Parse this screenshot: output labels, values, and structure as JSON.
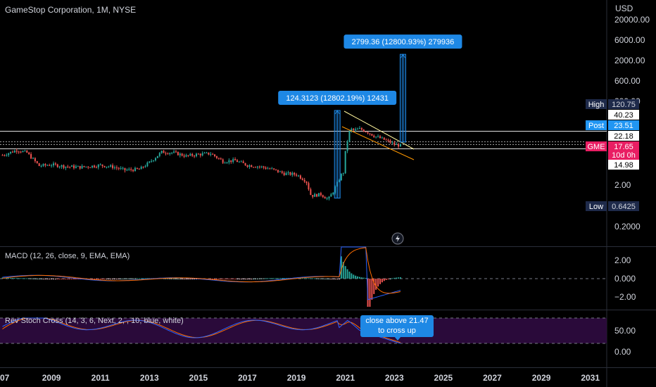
{
  "header": {
    "title": "GameStop Corporation, 1M, NYSE",
    "currency": "USD"
  },
  "colors": {
    "up": "#26a69a",
    "down": "#ef5350",
    "accent": "#2962ff",
    "measure": "#1e88e5",
    "gme_tag": "#e91e63",
    "macd": "#2962ff",
    "signal": "#ff6d00",
    "stoch_bg": "#2a0a3a"
  },
  "chart_data": [
    {
      "type": "candlestick",
      "title": "GameStop Corporation, 1M, NYSE",
      "y_scale": "log",
      "y_tick_labels": [
        "20000.00",
        "6000.00",
        "2000.00",
        "600.00",
        "200.00",
        "2.00",
        "0.2000"
      ],
      "x_tick_labels": [
        "07",
        "2009",
        "2011",
        "2013",
        "2015",
        "2017",
        "2019",
        "2021",
        "2023",
        "2025",
        "2027",
        "2029",
        "2031"
      ],
      "price_tags": [
        {
          "label": "High",
          "value": "120.75"
        },
        {
          "label": "",
          "value": "40.23"
        },
        {
          "label": "Post",
          "value": "23.51"
        },
        {
          "label": "",
          "value": "22.18"
        },
        {
          "label": "GME",
          "value": "17.65",
          "sub": "10d 0h"
        },
        {
          "label": "",
          "value": "14.98"
        },
        {
          "label": "Low",
          "value": "0.6425"
        }
      ],
      "horizontal_levels": [
        22.18,
        17.65,
        14.98
      ],
      "price_path": [
        {
          "x": 2007.0,
          "y": 10.5
        },
        {
          "x": 2007.6,
          "y": 14.0
        },
        {
          "x": 2008.0,
          "y": 12.0
        },
        {
          "x": 2008.5,
          "y": 5.8
        },
        {
          "x": 2009.0,
          "y": 6.2
        },
        {
          "x": 2009.6,
          "y": 5.6
        },
        {
          "x": 2010.2,
          "y": 5.4
        },
        {
          "x": 2011.0,
          "y": 6.0
        },
        {
          "x": 2011.5,
          "y": 5.5
        },
        {
          "x": 2012.0,
          "y": 4.6
        },
        {
          "x": 2012.6,
          "y": 4.8
        },
        {
          "x": 2013.0,
          "y": 7.0
        },
        {
          "x": 2013.5,
          "y": 12.5
        },
        {
          "x": 2014.0,
          "y": 12.0
        },
        {
          "x": 2014.5,
          "y": 10.0
        },
        {
          "x": 2015.0,
          "y": 11.0
        },
        {
          "x": 2015.5,
          "y": 11.5
        },
        {
          "x": 2016.0,
          "y": 7.5
        },
        {
          "x": 2016.5,
          "y": 7.8
        },
        {
          "x": 2017.0,
          "y": 6.0
        },
        {
          "x": 2017.5,
          "y": 5.6
        },
        {
          "x": 2018.0,
          "y": 4.8
        },
        {
          "x": 2018.5,
          "y": 3.8
        },
        {
          "x": 2019.0,
          "y": 3.6
        },
        {
          "x": 2019.4,
          "y": 2.5
        },
        {
          "x": 2019.6,
          "y": 1.1
        },
        {
          "x": 2020.0,
          "y": 1.2
        },
        {
          "x": 2020.3,
          "y": 0.9
        },
        {
          "x": 2020.5,
          "y": 1.4
        },
        {
          "x": 2020.8,
          "y": 3.2
        },
        {
          "x": 2020.95,
          "y": 5.0
        },
        {
          "x": 2021.05,
          "y": 22.0
        },
        {
          "x": 2021.2,
          "y": 40.0
        },
        {
          "x": 2021.6,
          "y": 45.0
        },
        {
          "x": 2021.9,
          "y": 38.0
        },
        {
          "x": 2022.2,
          "y": 30.0
        },
        {
          "x": 2022.5,
          "y": 26.0
        },
        {
          "x": 2022.8,
          "y": 22.0
        },
        {
          "x": 2023.0,
          "y": 19.0
        },
        {
          "x": 2023.3,
          "y": 17.65
        }
      ],
      "annotations": [
        {
          "text": "124.3123 (12802.19%) 12431",
          "x": 2020.67,
          "y_from": 0.97,
          "y_to": 125.3
        },
        {
          "text": "2799.36 (12800.93%) 279936",
          "x": 2023.35,
          "y_from": 21.7,
          "y_to": 2821
        }
      ]
    },
    {
      "type": "line",
      "title": "MACD (12, 26, close, 9, EMA, EMA)",
      "y_tick_labels": [
        "2.00",
        "0.000",
        "−2.00"
      ],
      "series": [
        {
          "name": "",
          "type": "histogram"
        },
        {
          "name": "",
          "type": "line"
        },
        {
          "name": "",
          "type": "line"
        }
      ]
    },
    {
      "type": "line",
      "title": "Rev Stoch Cross (14, 3, 6, Next, 2, , 10, blue, white)",
      "y_tick_labels": [
        "50.00",
        "0.00"
      ],
      "callout": [
        "close above 21.47",
        "to cross up"
      ]
    }
  ]
}
